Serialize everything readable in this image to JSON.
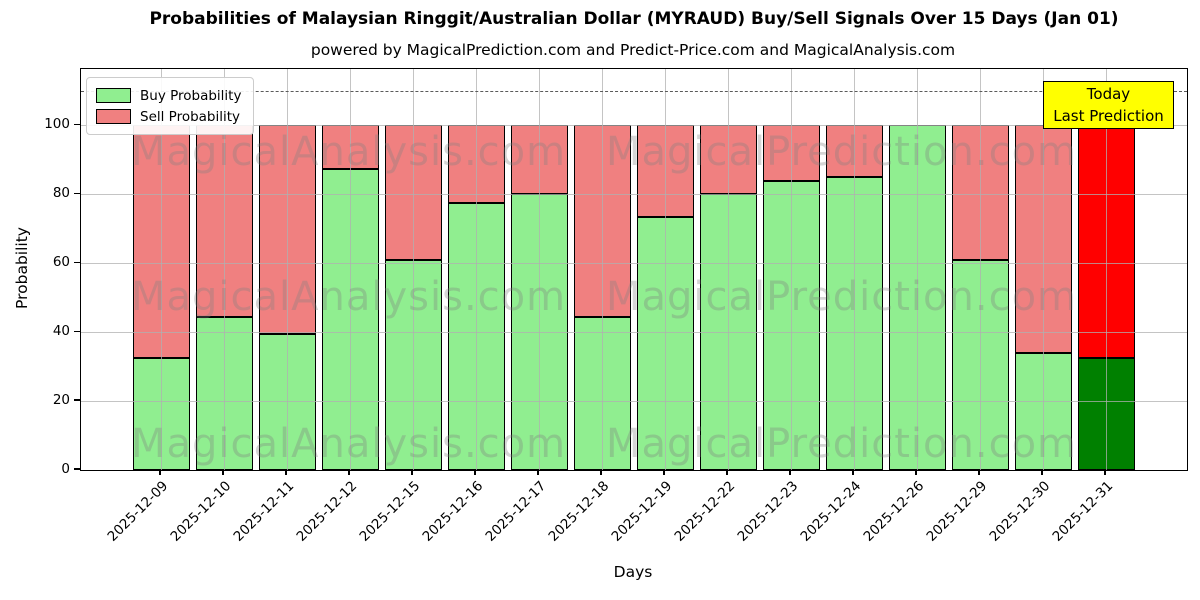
{
  "title": "Probabilities of Malaysian Ringgit/Australian Dollar (MYRAUD) Buy/Sell Signals Over 15 Days (Jan 01)",
  "subtitle": "powered by MagicalPrediction.com and Predict-Price.com and MagicalAnalysis.com",
  "x_axis": {
    "label": "Days"
  },
  "y_axis": {
    "label": "Probability"
  },
  "legend": {
    "items": [
      {
        "label": "Buy Probability",
        "color": "#90ee90"
      },
      {
        "label": "Sell Probability",
        "color": "#f08080"
      }
    ]
  },
  "annotation": {
    "lines": [
      "Today",
      "Last Prediction"
    ],
    "bg_color": "#ffff00"
  },
  "watermarks": {
    "left_text": "MagicalAnalysis.com",
    "right_text": "MagicalPrediction.com",
    "rows": 3
  },
  "colors": {
    "buy": "#90ee90",
    "sell": "#f08080",
    "today_buy": "#008000",
    "today_sell": "#ff0000",
    "grid": "#b0b0b0",
    "dashed_line": "#5a5a5a",
    "bar_edge": "#000000",
    "annotation_bg": "#ffff00"
  },
  "chart_data": {
    "type": "bar",
    "stacked": true,
    "title": "Probabilities of Malaysian Ringgit/Australian Dollar (MYRAUD) Buy/Sell Signals Over 15 Days (Jan 01)",
    "xlabel": "Days",
    "ylabel": "Probability",
    "categories": [
      "2025-12-09",
      "2025-12-10",
      "2025-12-11",
      "2025-12-12",
      "2025-12-15",
      "2025-12-16",
      "2025-12-17",
      "2025-12-18",
      "2025-12-19",
      "2025-12-22",
      "2025-12-23",
      "2025-12-24",
      "2025-12-26",
      "2025-12-29",
      "2025-12-30",
      "2025-12-31"
    ],
    "series": [
      {
        "name": "Buy Probability",
        "color": "#90ee90",
        "values": [
          32.5,
          44.5,
          39.5,
          87.5,
          61,
          77.5,
          80,
          44.5,
          73.5,
          80,
          84,
          85,
          100,
          61,
          34,
          32.5
        ]
      },
      {
        "name": "Sell Probability",
        "color": "#f08080",
        "values": [
          67.5,
          55.5,
          60.5,
          12.5,
          39,
          22.5,
          20,
          55.5,
          26.5,
          20,
          16,
          15,
          0,
          39,
          66,
          67.5
        ]
      }
    ],
    "highlight_last_bar": {
      "buy_color": "#008000",
      "sell_color": "#ff0000",
      "note": "Today / Last Prediction"
    },
    "ylim": [
      0,
      116.4
    ],
    "yticks": [
      0,
      20,
      40,
      60,
      80,
      100
    ],
    "dashed_line_y": 110,
    "grid": true,
    "legend_position": "upper left"
  }
}
